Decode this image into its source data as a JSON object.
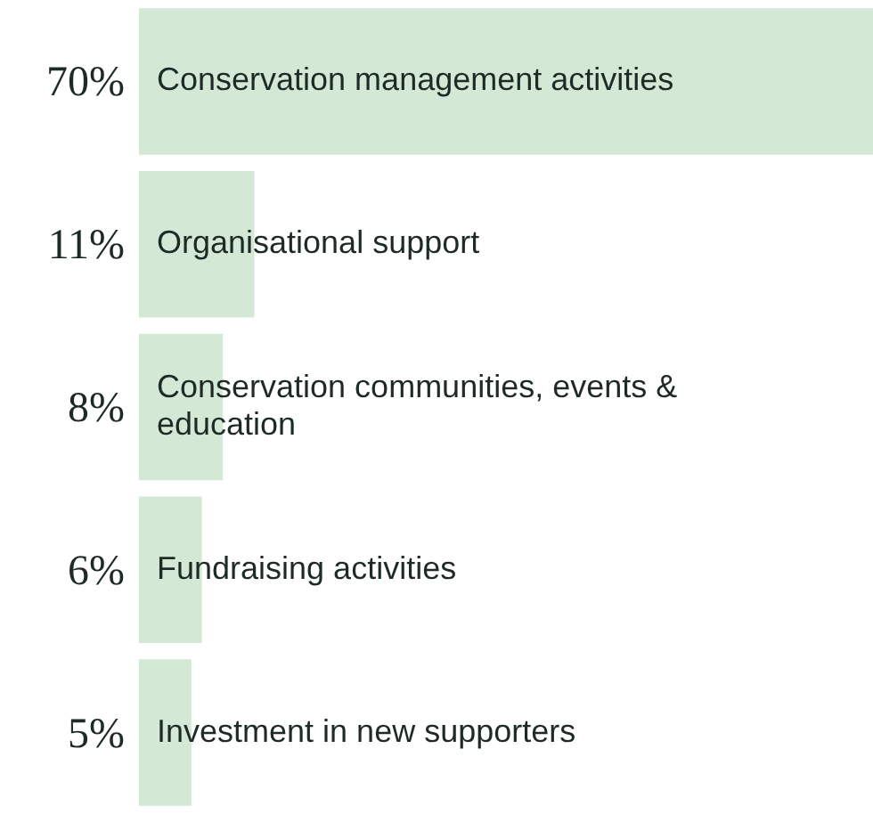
{
  "chart_data": {
    "type": "bar",
    "orientation": "horizontal",
    "categories": [
      "Conservation management activities",
      "Organisational support",
      "Conservation communities, events & education",
      "Fundraising activities",
      "Investment in new supporters"
    ],
    "values": [
      70,
      11,
      8,
      6,
      5
    ],
    "value_labels": [
      "70%",
      "11%",
      "8%",
      "6%",
      "5%"
    ],
    "color": "#d3e9d5"
  }
}
